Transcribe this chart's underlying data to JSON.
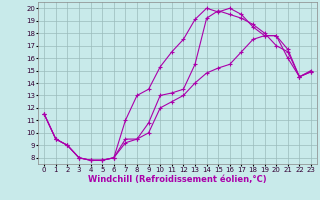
{
  "background_color": "#c8eaea",
  "line_color": "#aa00aa",
  "marker": "+",
  "markersize": 3,
  "linewidth": 0.8,
  "xlabel": "Windchill (Refroidissement éolien,°C)",
  "xlabel_fontsize": 6,
  "tick_fontsize": 5,
  "ylabel_ticks": [
    8,
    9,
    10,
    11,
    12,
    13,
    14,
    15,
    16,
    17,
    18,
    19,
    20
  ],
  "xlabel_ticks": [
    0,
    1,
    2,
    3,
    4,
    5,
    6,
    7,
    8,
    9,
    10,
    11,
    12,
    13,
    14,
    15,
    16,
    17,
    18,
    19,
    20,
    21,
    22,
    23
  ],
  "xlim": [
    -0.5,
    23.5
  ],
  "ylim": [
    7.5,
    20.5
  ],
  "grid_color": "#9bbcbc",
  "line1_x": [
    0,
    1,
    2,
    3,
    4,
    5,
    6,
    7,
    8,
    9,
    10,
    11,
    12,
    13,
    14,
    15,
    16,
    17,
    18,
    19,
    20,
    21,
    22,
    23
  ],
  "line1_y": [
    11.5,
    9.5,
    9.0,
    8.0,
    7.8,
    7.8,
    8.0,
    11.0,
    13.0,
    13.5,
    15.3,
    16.5,
    17.5,
    19.1,
    20.0,
    19.7,
    20.0,
    19.5,
    18.5,
    17.8,
    17.8,
    16.7,
    14.5,
    15.0
  ],
  "line2_x": [
    0,
    1,
    2,
    3,
    4,
    5,
    6,
    7,
    8,
    9,
    10,
    11,
    12,
    13,
    14,
    15,
    16,
    17,
    18,
    19,
    20,
    21,
    22,
    23
  ],
  "line2_y": [
    11.5,
    9.5,
    9.0,
    8.0,
    7.8,
    7.8,
    8.0,
    9.5,
    9.5,
    10.8,
    13.0,
    13.2,
    13.5,
    15.5,
    19.2,
    19.8,
    19.5,
    19.2,
    18.7,
    18.0,
    17.0,
    16.5,
    14.5,
    14.9
  ],
  "line3_x": [
    0,
    1,
    2,
    3,
    4,
    5,
    6,
    7,
    8,
    9,
    10,
    11,
    12,
    13,
    14,
    15,
    16,
    17,
    18,
    19,
    20,
    21,
    22,
    23
  ],
  "line3_y": [
    11.5,
    9.5,
    9.0,
    8.0,
    7.8,
    7.8,
    8.0,
    9.2,
    9.5,
    10.0,
    12.0,
    12.5,
    13.0,
    14.0,
    14.8,
    15.2,
    15.5,
    16.5,
    17.5,
    17.8,
    17.8,
    16.0,
    14.5,
    14.9
  ]
}
